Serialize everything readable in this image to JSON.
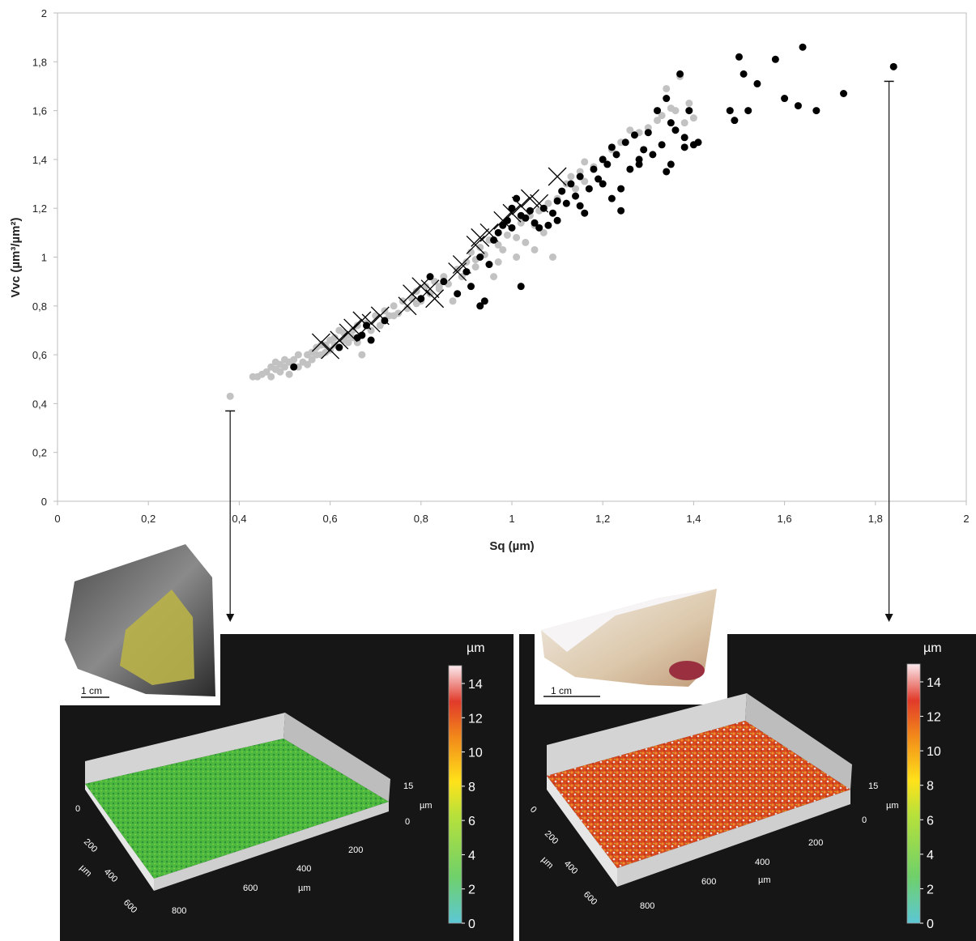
{
  "chart_data": {
    "type": "scatter",
    "title": "",
    "xlabel": "Sq (µm)",
    "ylabel": "Vvc (µm³/µm²)",
    "xlim": [
      0,
      2
    ],
    "ylim": [
      0,
      2
    ],
    "x_ticks": [
      "0",
      "0,2",
      "0,4",
      "0,6",
      "0,8",
      "1",
      "1,2",
      "1,4",
      "1,6",
      "1,8",
      "2"
    ],
    "y_ticks": [
      "0",
      "0,2",
      "0,4",
      "0,6",
      "0,8",
      "1",
      "1,2",
      "1,4",
      "1,6",
      "1,8",
      "2"
    ],
    "grid": false,
    "legend": "none",
    "series": [
      {
        "marker": "circle",
        "color": "#c2c2c2",
        "points": [
          [
            0.38,
            0.43
          ],
          [
            0.43,
            0.51
          ],
          [
            0.44,
            0.51
          ],
          [
            0.45,
            0.52
          ],
          [
            0.46,
            0.53
          ],
          [
            0.47,
            0.51
          ],
          [
            0.47,
            0.55
          ],
          [
            0.48,
            0.54
          ],
          [
            0.48,
            0.57
          ],
          [
            0.49,
            0.53
          ],
          [
            0.49,
            0.56
          ],
          [
            0.5,
            0.58
          ],
          [
            0.5,
            0.55
          ],
          [
            0.51,
            0.57
          ],
          [
            0.51,
            0.52
          ],
          [
            0.52,
            0.58
          ],
          [
            0.53,
            0.55
          ],
          [
            0.53,
            0.6
          ],
          [
            0.54,
            0.57
          ],
          [
            0.55,
            0.6
          ],
          [
            0.55,
            0.56
          ],
          [
            0.56,
            0.61
          ],
          [
            0.56,
            0.58
          ],
          [
            0.57,
            0.63
          ],
          [
            0.57,
            0.6
          ],
          [
            0.58,
            0.6
          ],
          [
            0.58,
            0.64
          ],
          [
            0.59,
            0.61
          ],
          [
            0.6,
            0.62
          ],
          [
            0.6,
            0.66
          ],
          [
            0.61,
            0.64
          ],
          [
            0.61,
            0.67
          ],
          [
            0.62,
            0.63
          ],
          [
            0.63,
            0.66
          ],
          [
            0.63,
            0.69
          ],
          [
            0.64,
            0.65
          ],
          [
            0.64,
            0.68
          ],
          [
            0.65,
            0.7
          ],
          [
            0.65,
            0.67
          ],
          [
            0.66,
            0.72
          ],
          [
            0.67,
            0.68
          ],
          [
            0.67,
            0.6
          ],
          [
            0.68,
            0.73
          ],
          [
            0.69,
            0.7
          ],
          [
            0.7,
            0.76
          ],
          [
            0.71,
            0.72
          ],
          [
            0.72,
            0.78
          ],
          [
            0.73,
            0.76
          ],
          [
            0.74,
            0.8
          ],
          [
            0.75,
            0.77
          ],
          [
            0.76,
            0.82
          ],
          [
            0.77,
            0.79
          ],
          [
            0.78,
            0.83
          ],
          [
            0.79,
            0.86
          ],
          [
            0.8,
            0.82
          ],
          [
            0.81,
            0.88
          ],
          [
            0.82,
            0.85
          ],
          [
            0.83,
            0.9
          ],
          [
            0.84,
            0.88
          ],
          [
            0.85,
            0.92
          ],
          [
            0.86,
            0.89
          ],
          [
            0.87,
            0.82
          ],
          [
            0.88,
            0.95
          ],
          [
            0.89,
            0.92
          ],
          [
            0.9,
            0.98
          ],
          [
            0.91,
            1.02
          ],
          [
            0.92,
            0.99
          ],
          [
            0.93,
            1.04
          ],
          [
            0.94,
            1.01
          ],
          [
            0.95,
            1.07
          ],
          [
            0.96,
            0.92
          ],
          [
            0.97,
            1.05
          ],
          [
            0.98,
            1.03
          ],
          [
            0.99,
            1.09
          ],
          [
            1.0,
            1.12
          ],
          [
            1.01,
            1.08
          ],
          [
            1.02,
            1.14
          ],
          [
            1.03,
            1.06
          ],
          [
            1.04,
            1.17
          ],
          [
            1.05,
            1.13
          ],
          [
            1.06,
            1.19
          ],
          [
            1.07,
            1.1
          ],
          [
            1.08,
            1.22
          ],
          [
            1.09,
            1.0
          ],
          [
            1.1,
            1.24
          ],
          [
            1.11,
            1.27
          ],
          [
            1.12,
            1.3
          ],
          [
            1.13,
            1.33
          ],
          [
            1.14,
            1.28
          ],
          [
            1.15,
            1.35
          ],
          [
            1.16,
            1.31
          ],
          [
            1.18,
            1.37
          ],
          [
            1.2,
            1.4
          ],
          [
            1.22,
            1.44
          ],
          [
            1.24,
            1.47
          ],
          [
            1.26,
            1.52
          ],
          [
            1.28,
            1.51
          ],
          [
            1.3,
            1.53
          ],
          [
            1.32,
            1.56
          ],
          [
            1.33,
            1.58
          ],
          [
            1.34,
            1.69
          ],
          [
            1.35,
            1.61
          ],
          [
            1.36,
            1.6
          ],
          [
            1.37,
            1.74
          ],
          [
            1.38,
            1.55
          ],
          [
            1.39,
            1.63
          ],
          [
            1.4,
            1.57
          ],
          [
            0.59,
            0.64
          ],
          [
            0.62,
            0.7
          ],
          [
            0.66,
            0.65
          ],
          [
            0.74,
            0.76
          ],
          [
            0.79,
            0.81
          ],
          [
            0.84,
            0.87
          ],
          [
            0.92,
            0.96
          ],
          [
            0.97,
            0.98
          ],
          [
            1.01,
            1.0
          ],
          [
            1.05,
            1.03
          ],
          [
            1.16,
            1.39
          ]
        ]
      },
      {
        "marker": "circle",
        "color": "#000000",
        "points": [
          [
            0.52,
            0.55
          ],
          [
            0.62,
            0.63
          ],
          [
            0.66,
            0.67
          ],
          [
            0.67,
            0.68
          ],
          [
            0.68,
            0.72
          ],
          [
            0.69,
            0.66
          ],
          [
            0.72,
            0.74
          ],
          [
            0.8,
            0.83
          ],
          [
            0.82,
            0.92
          ],
          [
            0.85,
            0.9
          ],
          [
            0.88,
            0.85
          ],
          [
            0.9,
            0.94
          ],
          [
            0.91,
            0.88
          ],
          [
            0.93,
            0.8
          ],
          [
            0.94,
            0.82
          ],
          [
            0.93,
            1.0
          ],
          [
            0.95,
            0.97
          ],
          [
            0.96,
            1.07
          ],
          [
            0.97,
            1.1
          ],
          [
            0.98,
            1.13
          ],
          [
            0.99,
            1.15
          ],
          [
            1.0,
            1.12
          ],
          [
            1.0,
            1.2
          ],
          [
            1.01,
            1.24
          ],
          [
            1.02,
            1.17
          ],
          [
            1.02,
            0.88
          ],
          [
            1.03,
            1.16
          ],
          [
            1.04,
            1.19
          ],
          [
            1.05,
            1.14
          ],
          [
            1.06,
            1.12
          ],
          [
            1.07,
            1.2
          ],
          [
            1.08,
            1.13
          ],
          [
            1.09,
            1.18
          ],
          [
            1.1,
            1.23
          ],
          [
            1.1,
            1.15
          ],
          [
            1.11,
            1.27
          ],
          [
            1.12,
            1.22
          ],
          [
            1.13,
            1.3
          ],
          [
            1.14,
            1.25
          ],
          [
            1.15,
            1.33
          ],
          [
            1.15,
            1.21
          ],
          [
            1.16,
            1.18
          ],
          [
            1.17,
            1.28
          ],
          [
            1.18,
            1.36
          ],
          [
            1.19,
            1.32
          ],
          [
            1.2,
            1.4
          ],
          [
            1.2,
            1.3
          ],
          [
            1.21,
            1.38
          ],
          [
            1.22,
            1.45
          ],
          [
            1.22,
            1.24
          ],
          [
            1.23,
            1.42
          ],
          [
            1.24,
            1.19
          ],
          [
            1.25,
            1.47
          ],
          [
            1.26,
            1.36
          ],
          [
            1.27,
            1.5
          ],
          [
            1.28,
            1.38
          ],
          [
            1.29,
            1.44
          ],
          [
            1.3,
            1.51
          ],
          [
            1.31,
            1.42
          ],
          [
            1.32,
            1.6
          ],
          [
            1.33,
            1.46
          ],
          [
            1.34,
            1.35
          ],
          [
            1.34,
            1.65
          ],
          [
            1.35,
            1.55
          ],
          [
            1.36,
            1.52
          ],
          [
            1.37,
            1.75
          ],
          [
            1.38,
            1.49
          ],
          [
            1.38,
            1.45
          ],
          [
            1.39,
            1.6
          ],
          [
            1.4,
            1.46
          ],
          [
            1.41,
            1.47
          ],
          [
            1.35,
            1.38
          ],
          [
            1.28,
            1.4
          ],
          [
            1.24,
            1.28
          ],
          [
            1.48,
            1.6
          ],
          [
            1.49,
            1.56
          ],
          [
            1.5,
            1.82
          ],
          [
            1.51,
            1.75
          ],
          [
            1.52,
            1.6
          ],
          [
            1.54,
            1.71
          ],
          [
            1.58,
            1.81
          ],
          [
            1.6,
            1.65
          ],
          [
            1.63,
            1.62
          ],
          [
            1.64,
            1.86
          ],
          [
            1.67,
            1.6
          ],
          [
            1.73,
            1.67
          ],
          [
            1.84,
            1.78
          ]
        ]
      },
      {
        "marker": "x",
        "color": "#000000",
        "points": [
          [
            0.58,
            0.65
          ],
          [
            0.6,
            0.62
          ],
          [
            0.62,
            0.66
          ],
          [
            0.64,
            0.69
          ],
          [
            0.65,
            0.71
          ],
          [
            0.67,
            0.74
          ],
          [
            0.69,
            0.73
          ],
          [
            0.71,
            0.76
          ],
          [
            0.77,
            0.8
          ],
          [
            0.78,
            0.85
          ],
          [
            0.8,
            0.88
          ],
          [
            0.82,
            0.87
          ],
          [
            0.83,
            0.83
          ],
          [
            0.88,
            0.94
          ],
          [
            0.89,
            0.97
          ],
          [
            0.92,
            1.05
          ],
          [
            0.93,
            1.08
          ],
          [
            0.95,
            1.1
          ],
          [
            0.98,
            1.15
          ],
          [
            1.0,
            1.18
          ],
          [
            1.02,
            1.21
          ],
          [
            1.04,
            1.24
          ],
          [
            1.06,
            1.22
          ],
          [
            1.1,
            1.33
          ]
        ]
      }
    ],
    "markers": [
      {
        "at_x": 0.38,
        "from_y": 0.37
      },
      {
        "at_x": 1.83,
        "from_y": 1.72
      }
    ]
  },
  "insets": [
    {
      "scale_bar": "1 cm",
      "colorbar": {
        "unit": "µm",
        "ticks": [
          "0",
          "2",
          "4",
          "6",
          "8",
          "10",
          "12",
          "14"
        ]
      },
      "axis": {
        "x_ticks": [
          "0",
          "200",
          "400",
          "600"
        ],
        "x_unit": "µm",
        "y_ticks": [
          "800",
          "600",
          "400",
          "200"
        ],
        "y_unit": "µm",
        "z_ticks": [
          "15",
          "0"
        ],
        "z_unit": "µm"
      },
      "surface_color": "#4fbf3a"
    },
    {
      "scale_bar": "1 cm",
      "colorbar": {
        "unit": "µm",
        "ticks": [
          "0",
          "2",
          "4",
          "6",
          "8",
          "10",
          "12",
          "14"
        ]
      },
      "axis": {
        "x_ticks": [
          "0",
          "200",
          "400",
          "600"
        ],
        "x_unit": "µm",
        "y_ticks": [
          "800",
          "600",
          "400",
          "200"
        ],
        "y_unit": "µm",
        "z_ticks": [
          "15",
          "0"
        ],
        "z_unit": "µm"
      },
      "surface_color": "#e0501f"
    }
  ]
}
